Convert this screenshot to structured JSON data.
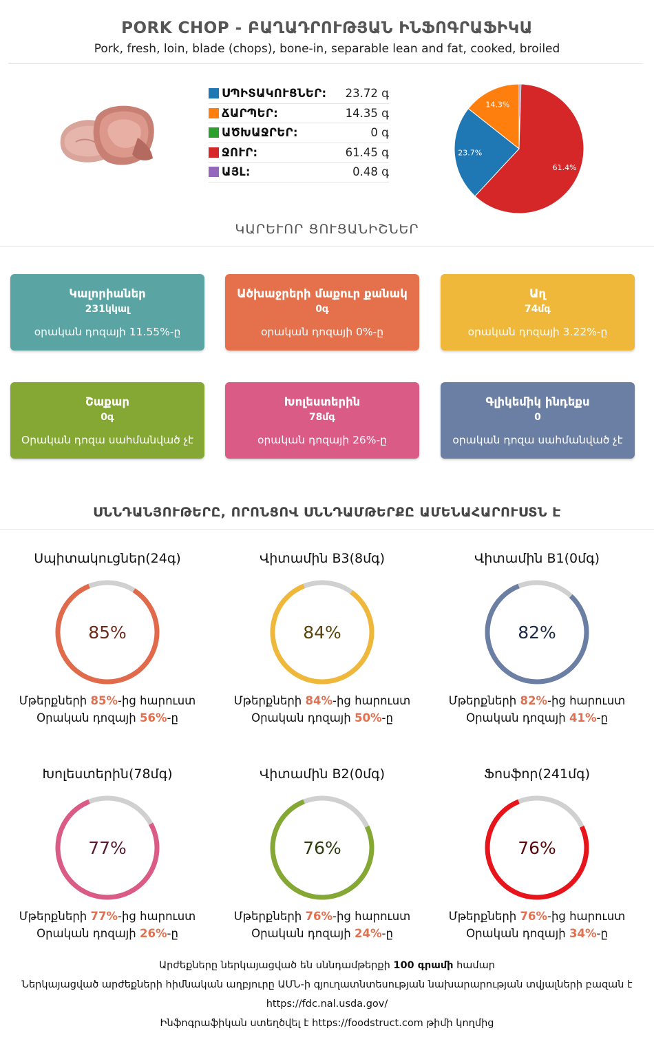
{
  "header": {
    "title": "PORK CHOP - ԲԱՂԱԴՐՈՒԹՅԱՆ ԻՆՖՈԳՐԱՖԻԿԱ",
    "subtitle": "Pork, fresh, loin, blade (chops), bone-in, separable lean and fat, cooked, broiled"
  },
  "macros": [
    {
      "name": "ՍՊԻՏԱԿՈՒՑՆԵՐ:",
      "value": "23.72 գ",
      "color": "#1f77b4"
    },
    {
      "name": "ՃԱՐՊԵՐ:",
      "value": "14.35 գ",
      "color": "#ff7f0e"
    },
    {
      "name": "ԱԾԽԱՋՐԵՐ:",
      "value": "0 գ",
      "color": "#2ca02c"
    },
    {
      "name": "ՋՈՒՐ:",
      "value": "61.45 գ",
      "color": "#d62728"
    },
    {
      "name": "ԱՅԼ:",
      "value": "0.48 գ",
      "color": "#9467bd"
    }
  ],
  "chart_data": {
    "type": "pie",
    "categories": [
      "ՍՊԻՏԱԿՈՒՑՆԵՐ",
      "ՃԱՐՊԵՐ",
      "ԱԾԽԱՋՐԵՐ",
      "ՋՈՒՐ",
      "ԱՅԼ"
    ],
    "values": [
      23.72,
      14.35,
      0,
      61.45,
      0.48
    ],
    "slice_labels": [
      "23.7%",
      "14.3%",
      "",
      "61.4%",
      ""
    ],
    "colors": [
      "#1f77b4",
      "#ff7f0e",
      "#2ca02c",
      "#d62728",
      "#9467bd"
    ]
  },
  "sections": {
    "key_indicators": "ԿԱՐԵՒՈՐ ՑՈՒՑԱՆԻՇՆԵՐ",
    "top_nutrients": "ՍՆՆԴԱՆՅՈՒԹԵՐԸ, ՈՐՈՆՑՈՎ ՍՆՆԴԱՄԹԵՐՔԸ ԱՄԵՆԱՀԱՐՈՒՍՏՆ Է"
  },
  "cards": [
    {
      "title": "Կալորիաներ",
      "value": "231կկալ",
      "sub": "օրական դոզայի 11.55%-ը",
      "color": "#5ba4a4"
    },
    {
      "title": "Ածխաջրերի մաքուր քանակ",
      "value": "0գ",
      "sub": "օրական դոզայի 0%-ը",
      "color": "#e4714b"
    },
    {
      "title": "Աղ",
      "value": "74մգ",
      "sub": "օրական դոզայի 3.22%-ը",
      "color": "#f0b83a"
    },
    {
      "title": "Շաքար",
      "value": "0գ",
      "sub": "Օրական դոզա սահմանված չէ",
      "color": "#84a833"
    },
    {
      "title": "Խոլեստերին",
      "value": "78մգ",
      "sub": "օրական դոզայի 26%-ը",
      "color": "#d95b86"
    },
    {
      "title": "Գլիկեմիկ ինդեքս",
      "value": "0",
      "sub": "օրական դոզա սահմանված չէ",
      "color": "#6a7fa3"
    }
  ],
  "nutrients": [
    {
      "title": "Սպիտակուցներ(24գ)",
      "percent": 85,
      "label": "85%",
      "color": "#e06a4a",
      "text_color": "#6b2a1a",
      "line1_pre": "Մթերքների ",
      "line1_val": "85%",
      "line1_post": "-ից հարուստ",
      "line2_pre": "Օրական դոզայի ",
      "line2_val": "56%",
      "line2_post": "-ը"
    },
    {
      "title": "Վիտամին B3(8մգ)",
      "percent": 84,
      "label": "84%",
      "color": "#f0b83a",
      "text_color": "#5a4510",
      "line1_pre": "Մթերքների ",
      "line1_val": "84%",
      "line1_post": "-ից հարուստ",
      "line2_pre": "Օրական դոզայի ",
      "line2_val": "50%",
      "line2_post": "-ը"
    },
    {
      "title": "Վիտամին B1(0մգ)",
      "percent": 82,
      "label": "82%",
      "color": "#6a7fa3",
      "text_color": "#1e2a44",
      "line1_pre": "Մթերքների ",
      "line1_val": "82%",
      "line1_post": "-ից հարուստ",
      "line2_pre": "Օրական դոզայի ",
      "line2_val": "41%",
      "line2_post": "-ը"
    },
    {
      "title": "Խոլեստերին(78մգ)",
      "percent": 77,
      "label": "77%",
      "color": "#d95b86",
      "text_color": "#5a1a30",
      "line1_pre": "Մթերքների ",
      "line1_val": "77%",
      "line1_post": "-ից հարուստ",
      "line2_pre": "Օրական դոզայի ",
      "line2_val": "26%",
      "line2_post": "-ը"
    },
    {
      "title": "Վիտամին B2(0մգ)",
      "percent": 76,
      "label": "76%",
      "color": "#84a833",
      "text_color": "#2e3d10",
      "line1_pre": "Մթերքների ",
      "line1_val": "76%",
      "line1_post": "-ից հարուստ",
      "line2_pre": "Օրական դոզայի ",
      "line2_val": "24%",
      "line2_post": "-ը"
    },
    {
      "title": "Ֆոսֆոր(241մգ)",
      "percent": 76,
      "label": "76%",
      "color": "#e8141c",
      "text_color": "#5a0a0a",
      "line1_pre": "Մթերքների ",
      "line1_val": "76%",
      "line1_post": "-ից հարուստ",
      "line2_pre": "Օրական դոզայի ",
      "line2_val": "34%",
      "line2_post": "-ը"
    }
  ],
  "footer": {
    "line1_pre": "Արժեքները ներկայացված են սննդամթերքի ",
    "line1_bold": "100 գրամի",
    "line1_post": " համար",
    "line2": "Ներկայացված արժեքների հիմնական աղբյուրը ԱՄՆ-ի գյուղատնտեսության նախարարության տվյալների բազան է",
    "line3": "https://fdc.nal.usda.gov/",
    "line4_pre": "Ինֆոգրաֆիկան ստեղծվել է ",
    "line4_link": "https://foodstruct.com",
    "line4_post": " թիմի կողմից"
  }
}
